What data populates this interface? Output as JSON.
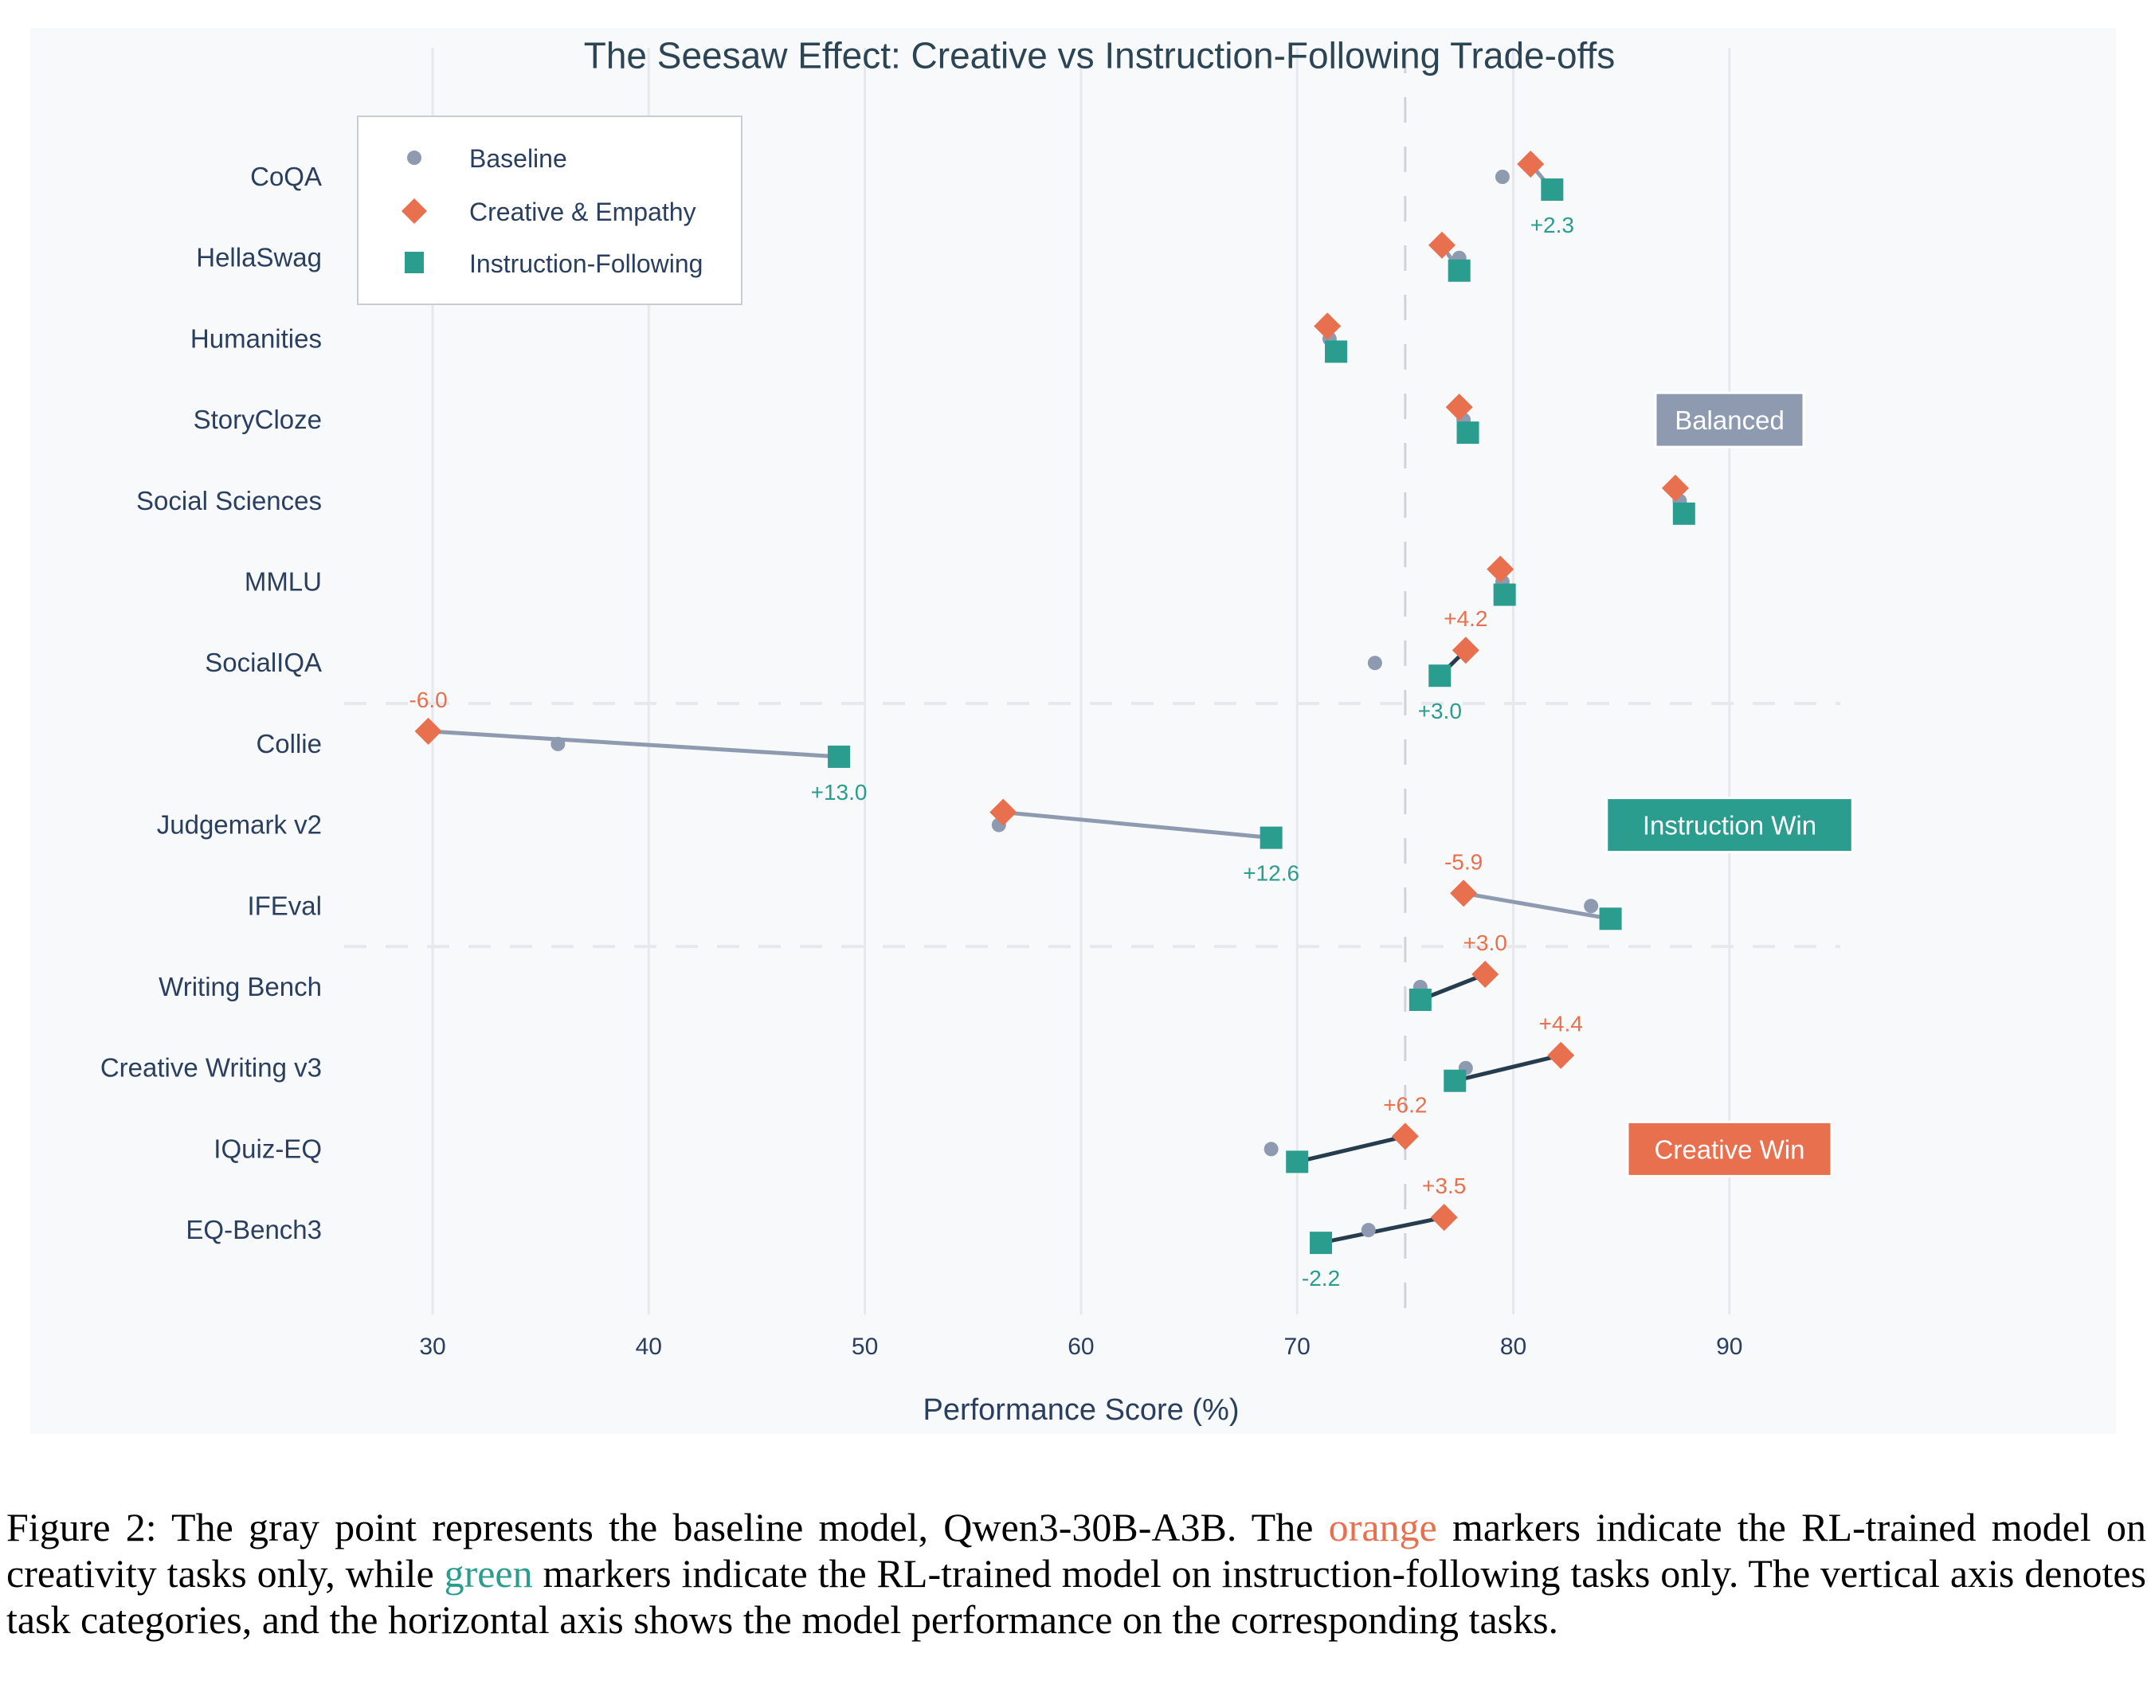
{
  "chart_data": {
    "type": "scatter",
    "subtype": "dumbbell",
    "title": "The Seesaw Effect: Creative vs Instruction-Following Trade-offs",
    "xlabel": "Performance Score (%)",
    "ylabel": "",
    "xlim": [
      25,
      97
    ],
    "xticks": [
      30,
      40,
      50,
      60,
      70,
      80,
      90
    ],
    "reference_line_x": 75,
    "grid": true,
    "legend": {
      "placement": "top-left",
      "entries": [
        {
          "name": "Baseline",
          "marker": "circle",
          "color": "#8e9ab0"
        },
        {
          "name": "Creative & Empathy",
          "marker": "diamond",
          "color": "#e8704f"
        },
        {
          "name": "Instruction-Following",
          "marker": "square",
          "color": "#2a9d8f"
        }
      ]
    },
    "categories": [
      "CoQA",
      "HellaSwag",
      "Humanities",
      "StoryCloze",
      "Social Sciences",
      "MMLU",
      "SocialIQA",
      "Collie",
      "Judgemark v2",
      "IFEval",
      "Writing Bench",
      "Creative Writing v3",
      "IQuiz-EQ",
      "EQ-Bench3"
    ],
    "series": [
      {
        "name": "Baseline",
        "values": [
          79.5,
          77.5,
          71.5,
          77.7,
          87.7,
          79.5,
          73.6,
          35.8,
          56.2,
          83.6,
          75.7,
          77.8,
          68.8,
          73.3
        ]
      },
      {
        "name": "Creative & Empathy",
        "values": [
          80.8,
          76.7,
          71.4,
          77.5,
          87.5,
          79.4,
          77.8,
          29.8,
          56.4,
          77.7,
          78.7,
          82.2,
          75.0,
          76.8
        ]
      },
      {
        "name": "Instruction-Following",
        "values": [
          81.8,
          77.5,
          71.8,
          77.9,
          87.9,
          79.6,
          76.6,
          48.8,
          68.8,
          84.5,
          75.7,
          77.3,
          70.0,
          71.1
        ]
      }
    ],
    "connector_style": [
      "neutral",
      "neutral",
      "neutral",
      "neutral",
      "neutral",
      "neutral",
      "creative",
      "neutral",
      "neutral",
      "neutral",
      "creative",
      "creative",
      "creative",
      "creative"
    ],
    "annotations": [
      {
        "row": "CoQA",
        "series": "Instruction-Following",
        "text": "+2.3",
        "position": "below"
      },
      {
        "row": "SocialIQA",
        "series": "Creative & Empathy",
        "text": "+4.2",
        "position": "above"
      },
      {
        "row": "SocialIQA",
        "series": "Instruction-Following",
        "text": "+3.0",
        "position": "below"
      },
      {
        "row": "Collie",
        "series": "Creative & Empathy",
        "text": "-6.0",
        "position": "above"
      },
      {
        "row": "Collie",
        "series": "Instruction-Following",
        "text": "+13.0",
        "position": "below"
      },
      {
        "row": "Judgemark v2",
        "series": "Instruction-Following",
        "text": "+12.6",
        "position": "below"
      },
      {
        "row": "IFEval",
        "series": "Creative & Empathy",
        "text": "-5.9",
        "position": "above"
      },
      {
        "row": "Writing Bench",
        "series": "Creative & Empathy",
        "text": "+3.0",
        "position": "above"
      },
      {
        "row": "Creative Writing v3",
        "series": "Creative & Empathy",
        "text": "+4.4",
        "position": "above"
      },
      {
        "row": "IQuiz-EQ",
        "series": "Creative & Empathy",
        "text": "+6.2",
        "position": "above"
      },
      {
        "row": "EQ-Bench3",
        "series": "Creative & Empathy",
        "text": "+3.5",
        "position": "above"
      },
      {
        "row": "EQ-Bench3",
        "series": "Instruction-Following",
        "text": "-2.2",
        "position": "below"
      }
    ],
    "group_separators_after": [
      "SocialIQA",
      "IFEval"
    ],
    "group_labels": [
      {
        "text": "Balanced",
        "group_row": "StoryCloze",
        "color": "#8e9ab0"
      },
      {
        "text": "Instruction Win",
        "group_row": "Judgemark v2",
        "color": "#2a9d8f"
      },
      {
        "text": "Creative Win",
        "group_row": "IQuiz-EQ",
        "color": "#e8704f"
      }
    ]
  },
  "colors": {
    "baseline": "#8e9ab0",
    "creative": "#e8704f",
    "instruction": "#2a9d8f",
    "connector_neutral": "#8e9ab0",
    "connector_creative": "#253d4e",
    "text": "#2a3f5f",
    "title": "#2b4555",
    "plot_bg": "#f8f9fa",
    "grid": "#e6e8ed",
    "ref_line": "#cfd3dc"
  },
  "caption": {
    "prefix": "Figure 2: The gray point represents the baseline model, Qwen3-30B-A3B. The ",
    "orange_word": "orange",
    "middle": " markers indicate the RL-trained model on creativity tasks only, while ",
    "green_word": "green",
    "suffix": " markers indicate the RL-trained model on instruction-following tasks only. The vertical axis denotes task categories, and the horizontal axis shows the model performance on the corresponding tasks."
  }
}
